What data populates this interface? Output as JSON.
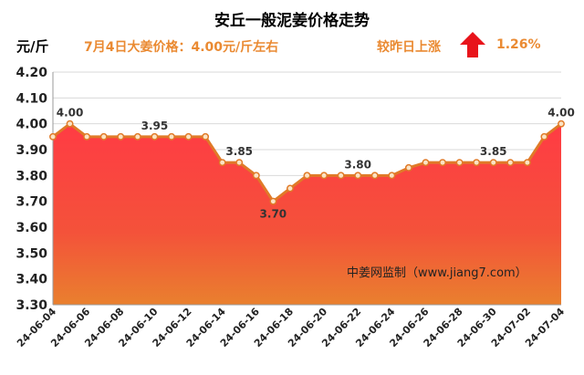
{
  "header": {
    "unit": "元/斤",
    "price_note": "7月4日大姜价格：4.00元/斤左右",
    "change_label": "较昨日上涨",
    "change_value": "1.26%"
  },
  "colors": {
    "accent_text": "#ea8a32",
    "line": "#e07a28",
    "marker_fill": "#fbe3c4",
    "up_arrow": "#e8141b",
    "area_top": "#ff3b44",
    "area_bottom": "#e9802e"
  },
  "icons": {
    "change_arrow": "up-arrow-icon"
  },
  "chart_data": {
    "type": "area",
    "title": "安丘一般泥姜价格走势",
    "ylabel": "元/斤",
    "xlabel": "",
    "ylim": [
      3.3,
      4.2
    ],
    "yticks": [
      "3.30",
      "3.40",
      "3.50",
      "3.60",
      "3.70",
      "3.80",
      "3.90",
      "4.00",
      "4.10",
      "4.20"
    ],
    "grid": true,
    "x": [
      "24-06-04",
      "24-06-05",
      "24-06-06",
      "24-06-07",
      "24-06-08",
      "24-06-09",
      "24-06-10",
      "24-06-11",
      "24-06-12",
      "24-06-13",
      "24-06-14",
      "24-06-15",
      "24-06-16",
      "24-06-17",
      "24-06-18",
      "24-06-19",
      "24-06-20",
      "24-06-21",
      "24-06-22",
      "24-06-23",
      "24-06-24",
      "24-06-25",
      "24-06-26",
      "24-06-27",
      "24-06-28",
      "24-06-29",
      "24-06-30",
      "24-07-01",
      "24-07-02",
      "24-07-03",
      "24-07-04"
    ],
    "xtick_labels": [
      "24-06-04",
      "24-06-06",
      "24-06-08",
      "24-06-10",
      "24-06-12",
      "24-06-14",
      "24-06-16",
      "24-06-18",
      "24-06-20",
      "24-06-22",
      "24-06-24",
      "24-06-26",
      "24-06-28",
      "24-06-30",
      "24-07-02",
      "24-07-04"
    ],
    "values": [
      3.95,
      4.0,
      3.95,
      3.95,
      3.95,
      3.95,
      3.95,
      3.95,
      3.95,
      3.95,
      3.85,
      3.85,
      3.8,
      3.7,
      3.75,
      3.8,
      3.8,
      3.8,
      3.8,
      3.8,
      3.8,
      3.83,
      3.85,
      3.85,
      3.85,
      3.85,
      3.85,
      3.85,
      3.85,
      3.95,
      4.0
    ],
    "data_labels": [
      {
        "index": 1,
        "text": "4.00",
        "pos": "above"
      },
      {
        "index": 6,
        "text": "3.95",
        "pos": "above"
      },
      {
        "index": 11,
        "text": "3.85",
        "pos": "above"
      },
      {
        "index": 13,
        "text": "3.70",
        "pos": "below"
      },
      {
        "index": 18,
        "text": "3.80",
        "pos": "above"
      },
      {
        "index": 26,
        "text": "3.85",
        "pos": "above"
      },
      {
        "index": 30,
        "text": "4.00",
        "pos": "above"
      }
    ],
    "watermark": "中姜网监制（www.jiang7.com）"
  }
}
